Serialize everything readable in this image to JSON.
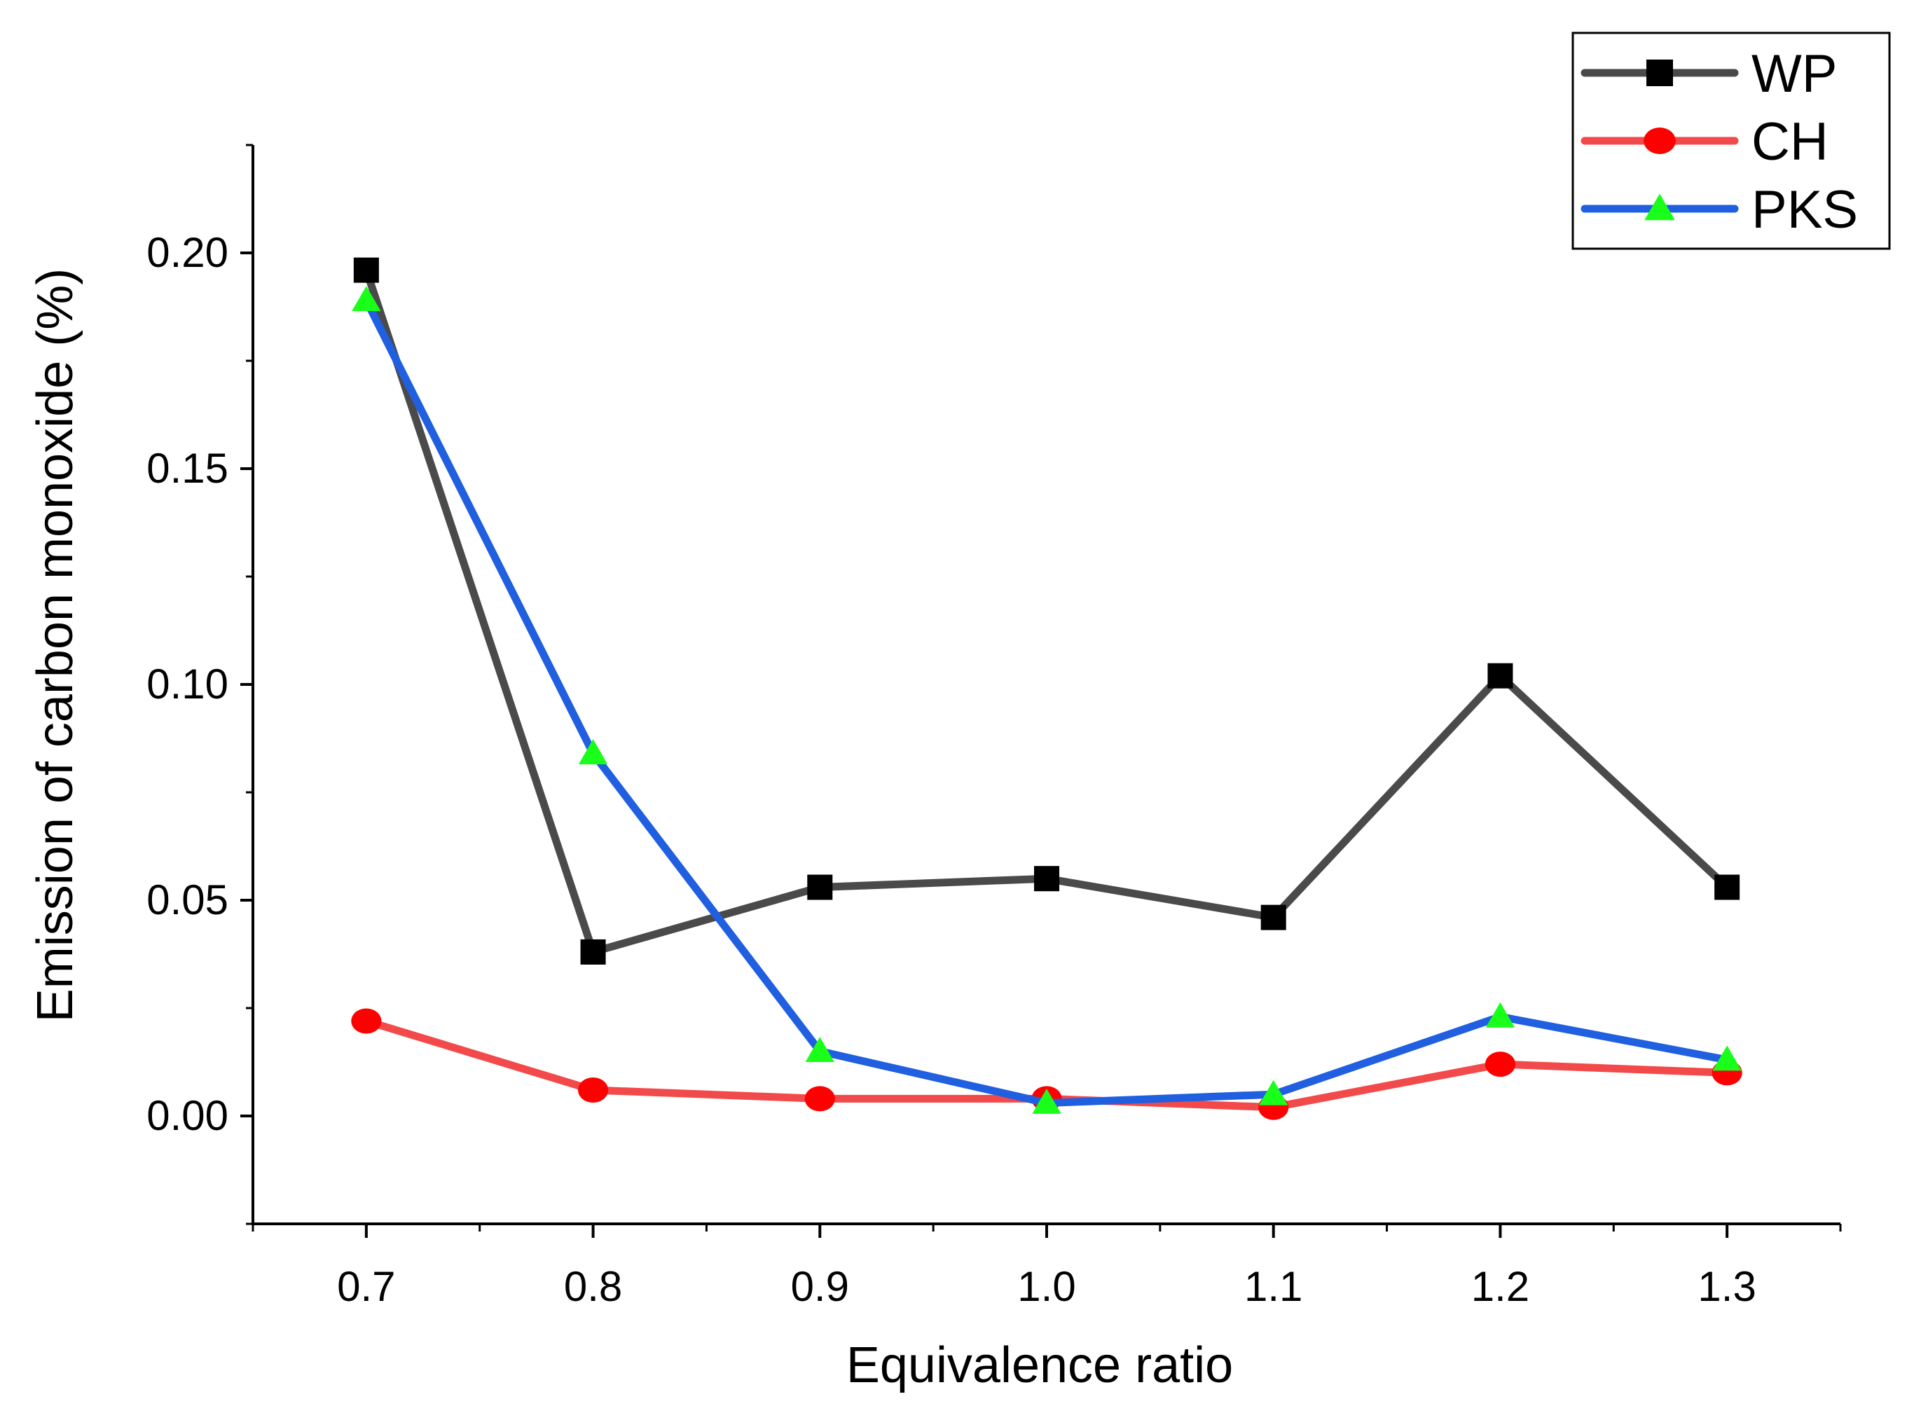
{
  "chart_data": {
    "type": "line",
    "title": "",
    "xlabel": "Equivalence ratio",
    "ylabel": "Emission of carbon monoxide (%)",
    "x": [
      0.7,
      0.8,
      0.9,
      1.0,
      1.1,
      1.2,
      1.3
    ],
    "x_tick_labels": [
      "0.7",
      "0.8",
      "0.9",
      "1.0",
      "1.1",
      "1.2",
      "1.3"
    ],
    "y_ticks": [
      0.0,
      0.05,
      0.1,
      0.15,
      0.2
    ],
    "y_tick_labels": [
      "0.00",
      "0.05",
      "0.10",
      "0.15",
      "0.20"
    ],
    "xlim": [
      0.65,
      1.35
    ],
    "ylim": [
      -0.025,
      0.225
    ],
    "grid": false,
    "legend_position": "top-right",
    "series": [
      {
        "name": "WP",
        "marker": "square",
        "line_color": "#4a4a4a",
        "marker_color": "#000000",
        "values": [
          0.196,
          0.038,
          0.053,
          0.055,
          0.046,
          0.102,
          0.053
        ]
      },
      {
        "name": "CH",
        "marker": "circle",
        "line_color": "#f24a4a",
        "marker_color": "#ff0000",
        "values": [
          0.022,
          0.006,
          0.004,
          0.004,
          0.002,
          0.012,
          0.01
        ]
      },
      {
        "name": "PKS",
        "marker": "triangle",
        "line_color": "#1f5fe0",
        "marker_color": "#19ff19",
        "values": [
          0.189,
          0.084,
          0.015,
          0.003,
          0.005,
          0.023,
          0.013
        ]
      }
    ]
  }
}
